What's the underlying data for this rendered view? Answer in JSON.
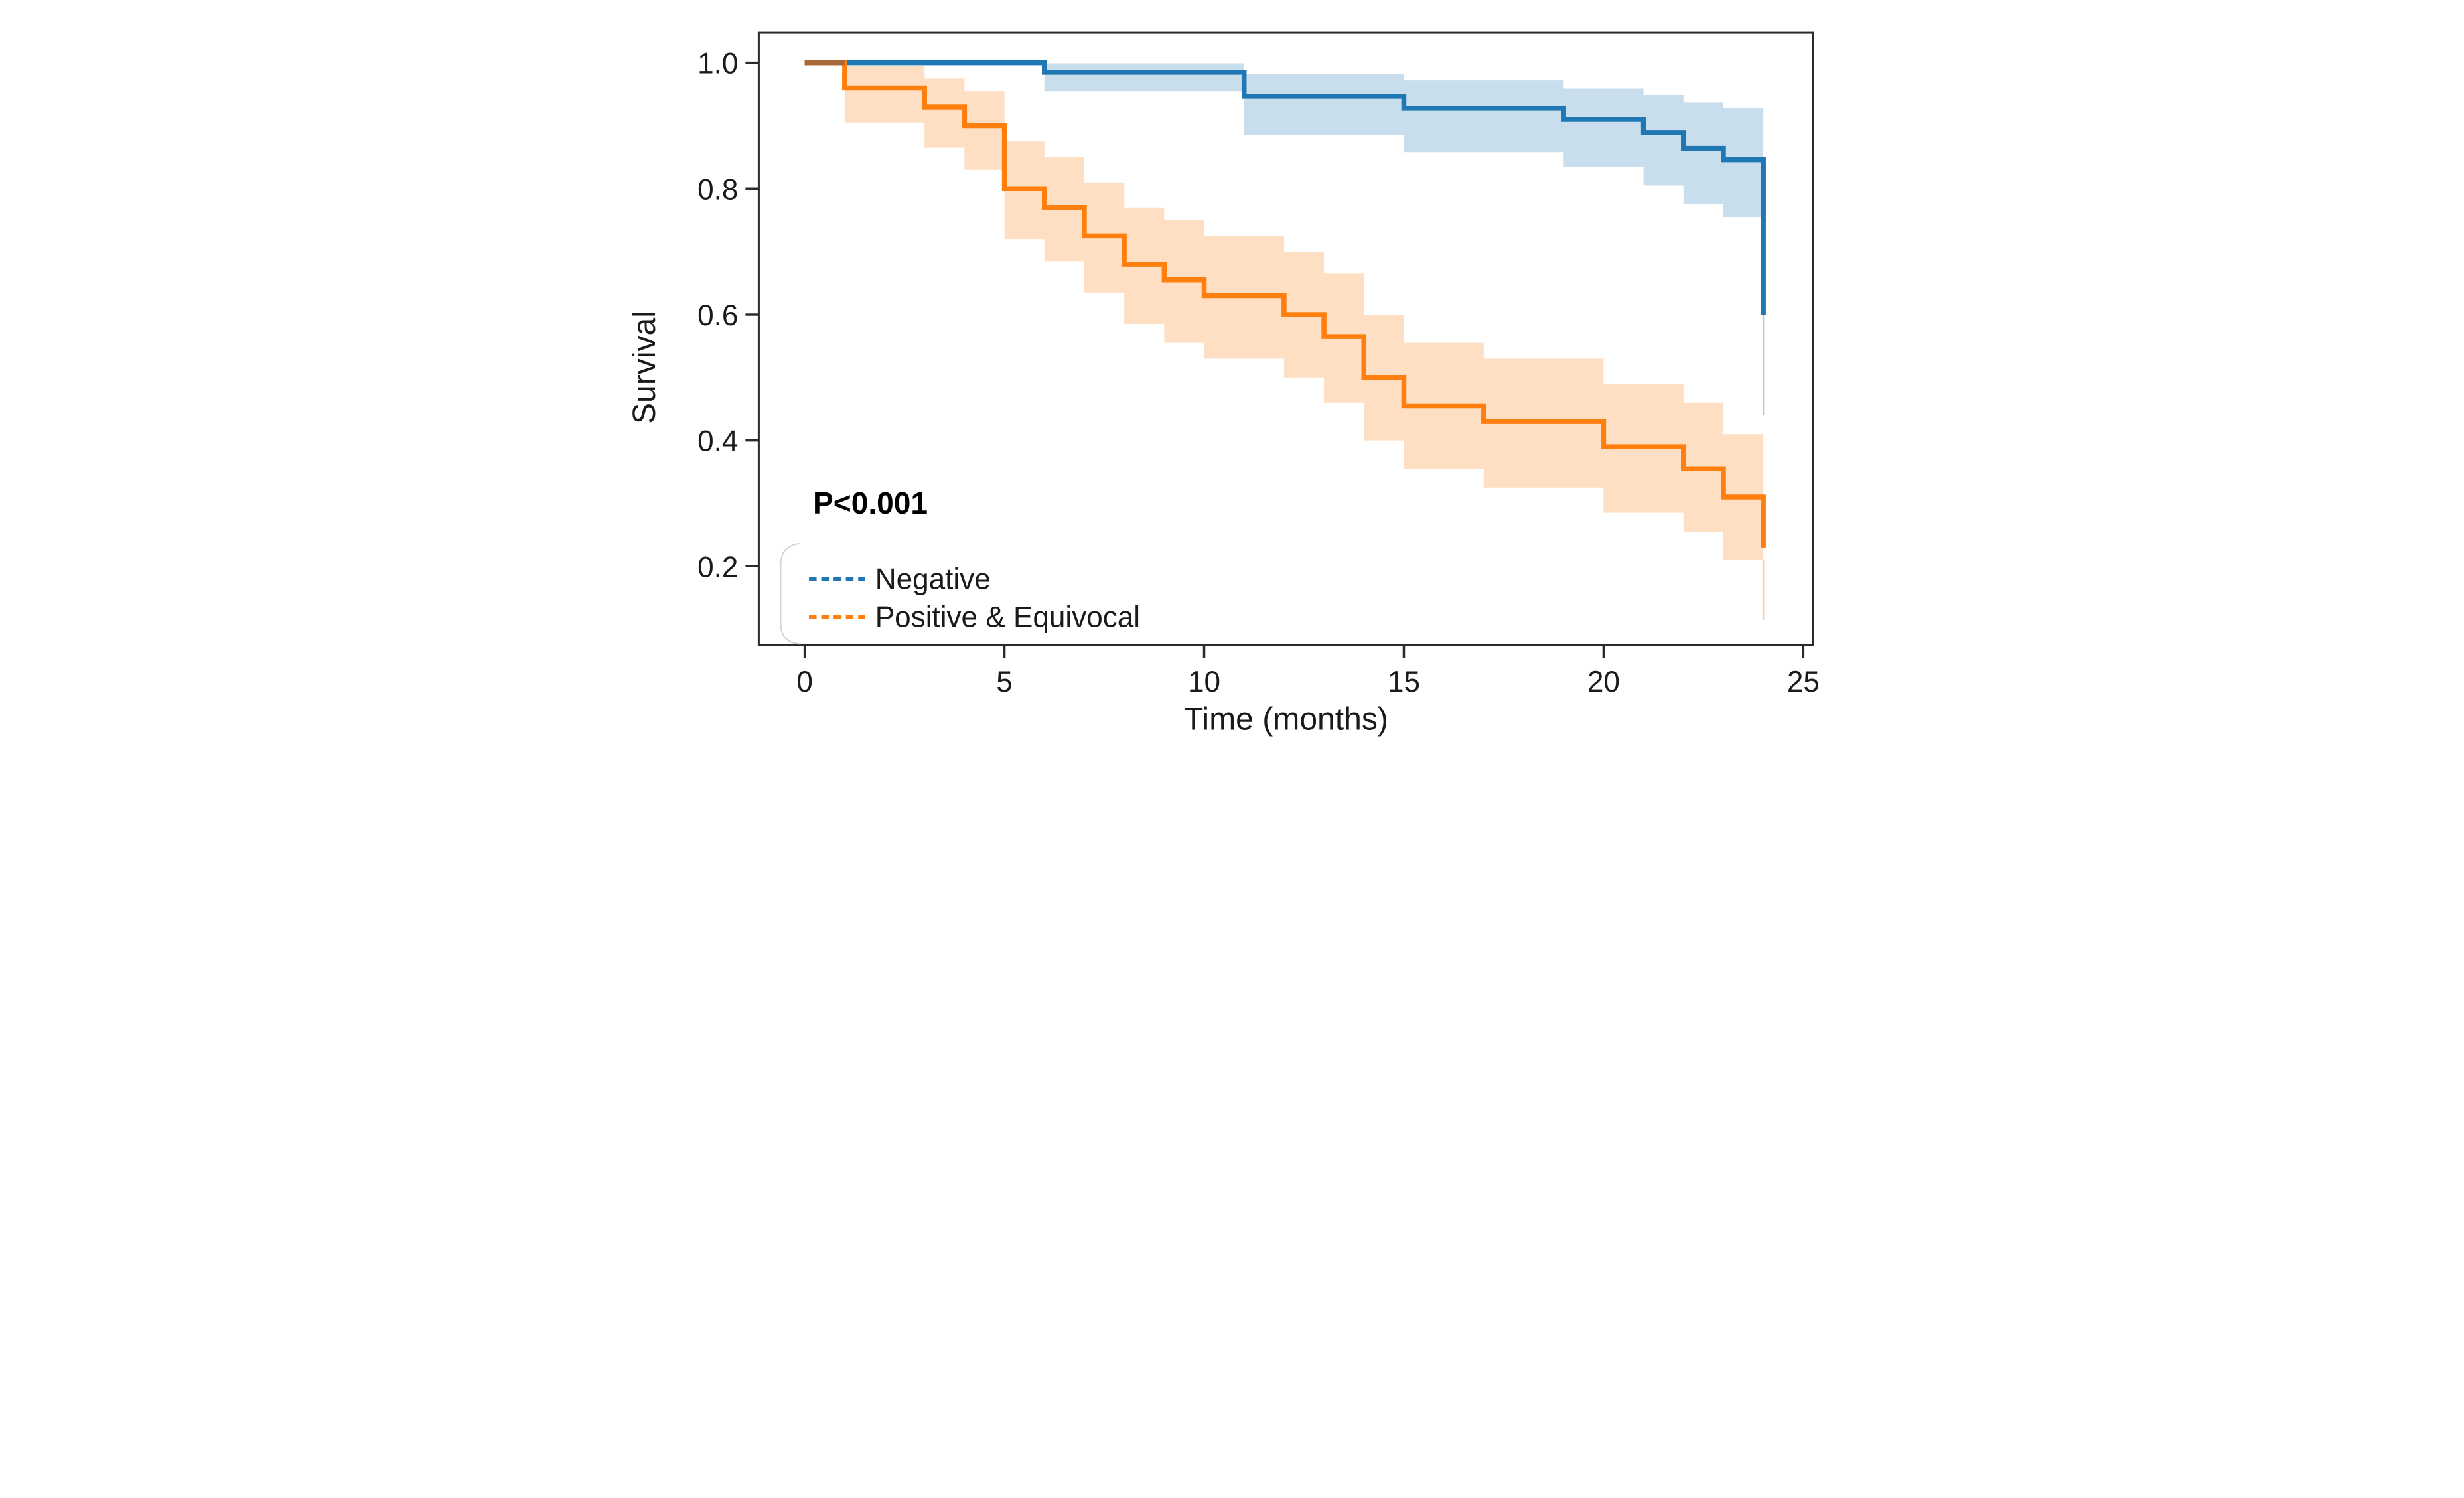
{
  "figure": {
    "background": "#ffffff",
    "frame_color": "#2b2b2b",
    "tick_color": "#2b2b2b",
    "text_color": "#1a1a1a",
    "legend_frame_color": "#d4d4d4"
  },
  "chart_data": {
    "type": "line",
    "subtype": "kaplan_meier_step_curve",
    "title": "",
    "xlabel": "Time (months)",
    "ylabel": "Survival",
    "xlim": [
      -1.15,
      25.25
    ],
    "ylim": [
      0.075,
      1.048
    ],
    "xticks": [
      0,
      5,
      10,
      15,
      20,
      25
    ],
    "yticks": [
      0.2,
      0.4,
      0.6,
      0.8,
      1.0
    ],
    "grid": false,
    "legend_position": "lower left",
    "annotation": {
      "text": "P<0.001",
      "month": 0.2,
      "survival": 0.305
    },
    "series": [
      {
        "name": "Negative",
        "line_color": "#1f77b4",
        "band_color": "rgba(31,119,180,0.24)",
        "whisker_color": "rgba(31,119,180,0.35)",
        "steps": [
          [
            0,
            1.0
          ],
          [
            6,
            0.985
          ],
          [
            11,
            0.947
          ],
          [
            15,
            0.928
          ],
          [
            19,
            0.91
          ],
          [
            21,
            0.889
          ],
          [
            22,
            0.864
          ],
          [
            23,
            0.846
          ],
          [
            24,
            0.6
          ]
        ],
        "ci": [
          [
            6,
            0.955,
            0.999
          ],
          [
            11,
            0.885,
            0.982
          ],
          [
            15,
            0.858,
            0.972
          ],
          [
            19,
            0.835,
            0.959
          ],
          [
            21,
            0.805,
            0.949
          ],
          [
            22,
            0.775,
            0.937
          ],
          [
            23,
            0.755,
            0.928
          ],
          [
            24,
            0.755,
            0.928
          ]
        ],
        "end_whisker": {
          "month": 24,
          "from": 0.755,
          "to": 0.44
        }
      },
      {
        "name": "Positive & Equivocal",
        "line_color": "#ff7f0e",
        "band_color": "rgba(255,127,14,0.25)",
        "whisker_color": "rgba(255,127,14,0.40)",
        "steps": [
          [
            0,
            1.0
          ],
          [
            1,
            0.96
          ],
          [
            3,
            0.93
          ],
          [
            4,
            0.9
          ],
          [
            5,
            0.8
          ],
          [
            6,
            0.77
          ],
          [
            7,
            0.725
          ],
          [
            8,
            0.68
          ],
          [
            9,
            0.655
          ],
          [
            10,
            0.63
          ],
          [
            12,
            0.6
          ],
          [
            13,
            0.565
          ],
          [
            14,
            0.5
          ],
          [
            15,
            0.455
          ],
          [
            17,
            0.43
          ],
          [
            20,
            0.39
          ],
          [
            22,
            0.355
          ],
          [
            23,
            0.31
          ],
          [
            24,
            0.23
          ]
        ],
        "ci": [
          [
            1,
            0.905,
            0.995
          ],
          [
            3,
            0.865,
            0.975
          ],
          [
            4,
            0.83,
            0.955
          ],
          [
            5,
            0.72,
            0.875
          ],
          [
            6,
            0.685,
            0.85
          ],
          [
            7,
            0.635,
            0.81
          ],
          [
            8,
            0.585,
            0.77
          ],
          [
            9,
            0.555,
            0.75
          ],
          [
            10,
            0.53,
            0.725
          ],
          [
            12,
            0.5,
            0.7
          ],
          [
            13,
            0.46,
            0.665
          ],
          [
            14,
            0.4,
            0.6
          ],
          [
            15,
            0.355,
            0.555
          ],
          [
            17,
            0.325,
            0.53
          ],
          [
            20,
            0.285,
            0.49
          ],
          [
            22,
            0.255,
            0.46
          ],
          [
            23,
            0.21,
            0.41
          ],
          [
            24,
            0.21,
            0.345
          ]
        ],
        "end_whisker": {
          "month": 24,
          "from": 0.21,
          "to": 0.115
        }
      }
    ],
    "overlap_segment": {
      "from_month": 0,
      "to_month": 1,
      "survival": 1.0,
      "color": "#a9683a"
    }
  }
}
